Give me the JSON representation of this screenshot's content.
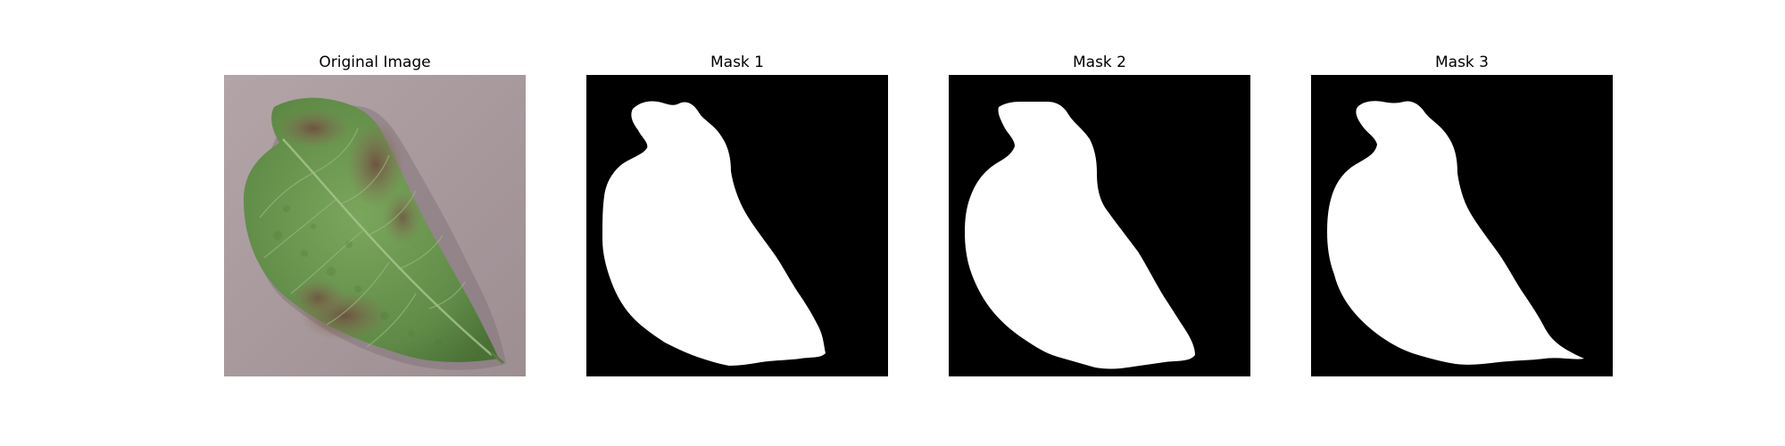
{
  "figure": {
    "panels": [
      {
        "title": "Original Image",
        "content": "leaf-photo"
      },
      {
        "title": "Mask 1",
        "content": "segmentation-mask"
      },
      {
        "title": "Mask 2",
        "content": "segmentation-mask"
      },
      {
        "title": "Mask 3",
        "content": "segmentation-mask"
      }
    ],
    "colors": {
      "background": "#a8999c",
      "leaf": "#6f9a55",
      "leaf_dark": "#4f7a3c",
      "lesion": "#7a5e4a",
      "mask_fg": "#ffffff",
      "mask_bg": "#000000"
    }
  }
}
